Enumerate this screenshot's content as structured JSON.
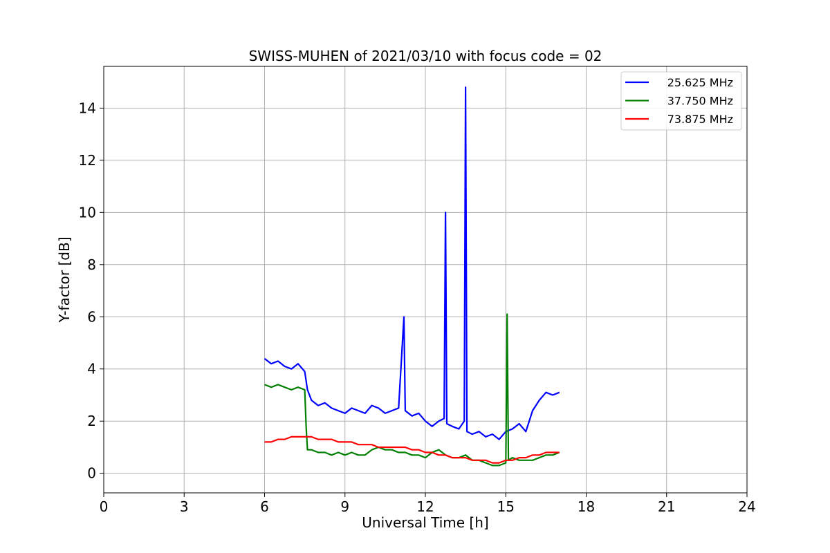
{
  "chart_data": {
    "type": "line",
    "title": "SWISS-MUHEN of 2021/03/10 with focus code = 02",
    "xlabel": "Universal Time [h]",
    "ylabel": "Y-factor [dB]",
    "xlim": [
      0,
      24
    ],
    "ylim": [
      -0.75,
      15.6
    ],
    "xticks": [
      0,
      3,
      6,
      9,
      12,
      15,
      18,
      21,
      24
    ],
    "yticks": [
      0,
      2,
      4,
      6,
      8,
      10,
      12,
      14
    ],
    "grid": true,
    "legend_position": "top-right",
    "series": [
      {
        "name": "25.625 MHz",
        "color": "#0000ff",
        "x": [
          6.0,
          6.25,
          6.5,
          6.75,
          7.0,
          7.25,
          7.5,
          7.6,
          7.75,
          8.0,
          8.25,
          8.5,
          8.75,
          9.0,
          9.25,
          9.5,
          9.75,
          10.0,
          10.25,
          10.5,
          10.75,
          11.0,
          11.2,
          11.25,
          11.5,
          11.75,
          12.0,
          12.25,
          12.5,
          12.7,
          12.75,
          12.8,
          13.0,
          13.25,
          13.45,
          13.5,
          13.55,
          13.75,
          14.0,
          14.25,
          14.5,
          14.75,
          15.0,
          15.25,
          15.5,
          15.75,
          16.0,
          16.25,
          16.5,
          16.75,
          17.0
        ],
        "values": [
          4.4,
          4.2,
          4.3,
          4.1,
          4.0,
          4.2,
          3.9,
          3.2,
          2.8,
          2.6,
          2.7,
          2.5,
          2.4,
          2.3,
          2.5,
          2.4,
          2.3,
          2.6,
          2.5,
          2.3,
          2.4,
          2.5,
          6.0,
          2.4,
          2.2,
          2.3,
          2.0,
          1.8,
          2.0,
          2.1,
          10.0,
          1.9,
          1.8,
          1.7,
          2.0,
          14.8,
          1.6,
          1.5,
          1.6,
          1.4,
          1.5,
          1.3,
          1.6,
          1.7,
          1.9,
          1.6,
          2.4,
          2.8,
          3.1,
          3.0,
          3.1
        ]
      },
      {
        "name": "37.750 MHz",
        "color": "#008000",
        "x": [
          6.0,
          6.25,
          6.5,
          6.75,
          7.0,
          7.25,
          7.5,
          7.55,
          7.6,
          7.75,
          8.0,
          8.25,
          8.5,
          8.75,
          9.0,
          9.25,
          9.5,
          9.75,
          10.0,
          10.25,
          10.5,
          10.75,
          11.0,
          11.25,
          11.5,
          11.75,
          12.0,
          12.25,
          12.5,
          12.75,
          13.0,
          13.25,
          13.5,
          13.75,
          14.0,
          14.25,
          14.5,
          14.75,
          15.0,
          15.05,
          15.1,
          15.25,
          15.5,
          15.75,
          16.0,
          16.25,
          16.5,
          16.75,
          17.0
        ],
        "values": [
          3.4,
          3.3,
          3.4,
          3.3,
          3.2,
          3.3,
          3.2,
          1.8,
          0.9,
          0.9,
          0.8,
          0.8,
          0.7,
          0.8,
          0.7,
          0.8,
          0.7,
          0.7,
          0.9,
          1.0,
          0.9,
          0.9,
          0.8,
          0.8,
          0.7,
          0.7,
          0.6,
          0.8,
          0.9,
          0.7,
          0.6,
          0.6,
          0.7,
          0.5,
          0.5,
          0.4,
          0.3,
          0.3,
          0.4,
          6.1,
          0.5,
          0.6,
          0.5,
          0.5,
          0.5,
          0.6,
          0.7,
          0.7,
          0.8
        ]
      },
      {
        "name": "73.875 MHz",
        "color": "#ff0000",
        "x": [
          6.0,
          6.25,
          6.5,
          6.75,
          7.0,
          7.25,
          7.5,
          7.75,
          8.0,
          8.25,
          8.5,
          8.75,
          9.0,
          9.25,
          9.5,
          9.75,
          10.0,
          10.25,
          10.5,
          10.75,
          11.0,
          11.25,
          11.5,
          11.75,
          12.0,
          12.25,
          12.5,
          12.75,
          13.0,
          13.25,
          13.5,
          13.75,
          14.0,
          14.25,
          14.5,
          14.75,
          15.0,
          15.25,
          15.5,
          15.75,
          16.0,
          16.25,
          16.5,
          16.75,
          17.0
        ],
        "values": [
          1.2,
          1.2,
          1.3,
          1.3,
          1.4,
          1.4,
          1.4,
          1.4,
          1.3,
          1.3,
          1.3,
          1.2,
          1.2,
          1.2,
          1.1,
          1.1,
          1.1,
          1.0,
          1.0,
          1.0,
          1.0,
          1.0,
          0.9,
          0.9,
          0.8,
          0.8,
          0.7,
          0.7,
          0.6,
          0.6,
          0.6,
          0.5,
          0.5,
          0.5,
          0.4,
          0.4,
          0.5,
          0.5,
          0.6,
          0.6,
          0.7,
          0.7,
          0.8,
          0.8,
          0.8
        ]
      }
    ]
  }
}
